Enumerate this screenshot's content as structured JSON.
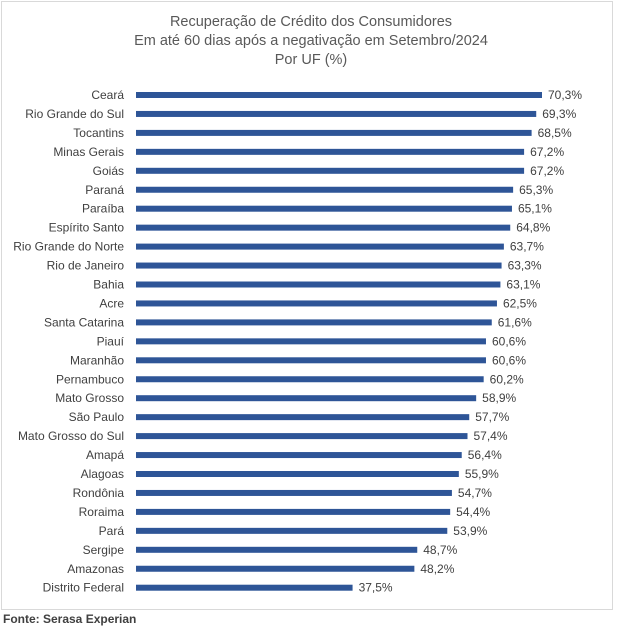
{
  "chart_data": {
    "type": "bar",
    "orientation": "horizontal",
    "title": "Recuperação de Crédito dos Consumidores",
    "subtitle": "Em até 60 dias após a negativação em Setembro/2024",
    "subtitle2": "Por UF (%)",
    "categories": [
      "Ceará",
      "Rio Grande do Sul",
      "Tocantins",
      "Minas Gerais",
      "Goiás",
      "Paraná",
      "Paraíba",
      "Espírito Santo",
      "Rio Grande do Norte",
      "Rio de Janeiro",
      "Bahia",
      "Acre",
      "Santa Catarina",
      "Piauí",
      "Maranhão",
      "Pernambuco",
      "Mato Grosso",
      "São Paulo",
      "Mato Grosso do Sul",
      "Amapá",
      "Alagoas",
      "Rondônia",
      "Roraima",
      "Pará",
      "Sergipe",
      "Amazonas",
      "Distrito Federal"
    ],
    "values": [
      70.3,
      69.3,
      68.5,
      67.2,
      67.2,
      65.3,
      65.1,
      64.8,
      63.7,
      63.3,
      63.1,
      62.5,
      61.6,
      60.6,
      60.6,
      60.2,
      58.9,
      57.7,
      57.4,
      56.4,
      55.9,
      54.7,
      54.4,
      53.9,
      48.7,
      48.2,
      37.5
    ],
    "labels": [
      "70,3%",
      "69,3%",
      "68,5%",
      "67,2%",
      "67,2%",
      "65,3%",
      "65,1%",
      "64,8%",
      "63,7%",
      "63,3%",
      "63,1%",
      "62,5%",
      "61,6%",
      "60,6%",
      "60,6%",
      "60,2%",
      "58,9%",
      "57,7%",
      "57,4%",
      "56,4%",
      "55,9%",
      "54,7%",
      "54,4%",
      "53,9%",
      "48,7%",
      "48,2%",
      "37,5%"
    ],
    "bar_color": "#2e5597",
    "xlim": [
      0,
      70.3
    ],
    "grid": false,
    "legend": "none"
  },
  "source": "Fonte: Serasa Experian"
}
